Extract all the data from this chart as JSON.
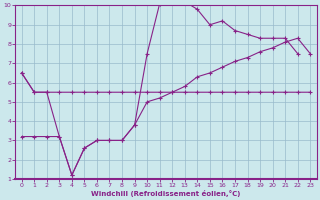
{
  "xlabel": "Windchill (Refroidissement éolien,°C)",
  "bg_color": "#cce8ec",
  "line_color": "#882288",
  "grid_color": "#99bbcc",
  "xlim": [
    -0.5,
    23.5
  ],
  "ylim": [
    1,
    10
  ],
  "xticks": [
    0,
    1,
    2,
    3,
    4,
    5,
    6,
    7,
    8,
    9,
    10,
    11,
    12,
    13,
    14,
    15,
    16,
    17,
    18,
    19,
    20,
    21,
    22,
    23
  ],
  "yticks": [
    1,
    2,
    3,
    4,
    5,
    6,
    7,
    8,
    9,
    10
  ],
  "line1_x": [
    0,
    1,
    2,
    3,
    4,
    5,
    6,
    7,
    8,
    9,
    10,
    11,
    12,
    13,
    14,
    15,
    16,
    17,
    18,
    19,
    20,
    21,
    22,
    23
  ],
  "line1_y": [
    6.5,
    5.5,
    5.5,
    5.5,
    5.5,
    5.5,
    5.5,
    5.5,
    5.5,
    5.5,
    5.5,
    5.5,
    5.5,
    5.5,
    5.5,
    5.5,
    5.5,
    5.5,
    5.5,
    5.5,
    5.5,
    5.5,
    5.5,
    5.5
  ],
  "line2_x": [
    0,
    1,
    2,
    3,
    4,
    5,
    6,
    7,
    8,
    9,
    10,
    11,
    12,
    13,
    14,
    15,
    16,
    17,
    18,
    19,
    20,
    21,
    22,
    23
  ],
  "line2_y": [
    6.5,
    5.5,
    5.5,
    3.2,
    1.2,
    2.6,
    3.0,
    3.0,
    3.0,
    3.8,
    7.5,
    10.1,
    10.2,
    10.2,
    9.8,
    9.0,
    9.2,
    8.7,
    8.5,
    8.3,
    8.3,
    8.3,
    7.5,
    null
  ],
  "line3_x": [
    0,
    1,
    2,
    3,
    4,
    5,
    6,
    7,
    8,
    9,
    10,
    11,
    12,
    13,
    14,
    15,
    16,
    17,
    18,
    19,
    20,
    21,
    22,
    23
  ],
  "line3_y": [
    3.2,
    3.2,
    3.2,
    3.2,
    1.2,
    2.6,
    3.0,
    3.0,
    3.0,
    3.8,
    5.0,
    5.2,
    5.5,
    5.8,
    6.3,
    6.5,
    6.8,
    7.1,
    7.3,
    7.6,
    7.8,
    8.1,
    8.3,
    7.5
  ]
}
